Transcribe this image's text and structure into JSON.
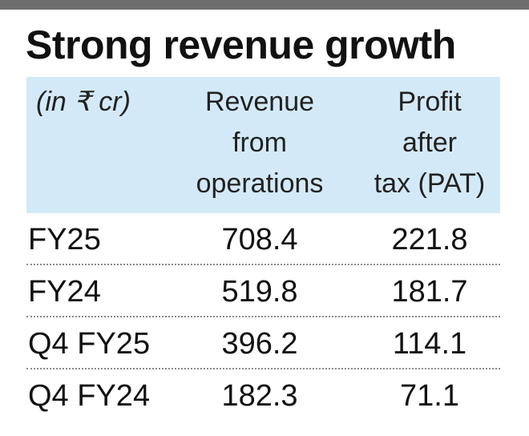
{
  "chart_data": {
    "type": "table",
    "title": "Strong revenue growth",
    "unit_label": "(in ₹ cr)",
    "columns": [
      "Revenue\nfrom\noperations",
      "Profit\nafter\ntax (PAT)"
    ],
    "rows": [
      {
        "label": "FY25",
        "values": [
          "708.4",
          "221.8"
        ]
      },
      {
        "label": "FY24",
        "values": [
          "519.8",
          "181.7"
        ]
      },
      {
        "label": "Q4 FY25",
        "values": [
          "396.2",
          "114.1"
        ]
      },
      {
        "label": "Q4 FY24",
        "values": [
          "182.3",
          "71.1"
        ]
      }
    ]
  },
  "colors": {
    "header_band": "#d4e9f7",
    "top_bar": "#6e6e6e",
    "text": "#111111"
  }
}
